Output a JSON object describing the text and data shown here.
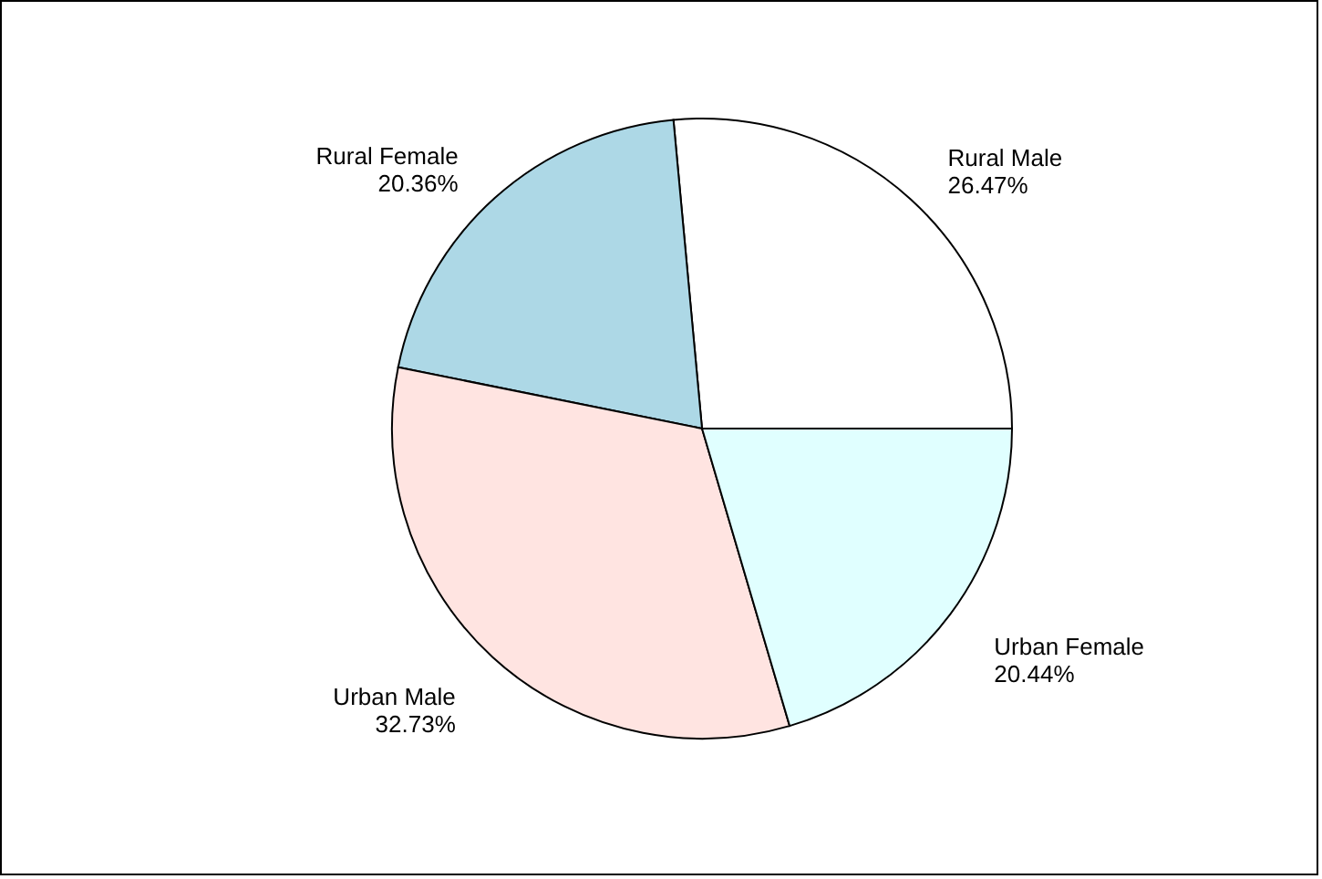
{
  "chart_data": {
    "type": "pie",
    "categories": [
      "Rural Male",
      "Rural Female",
      "Urban Male",
      "Urban Female"
    ],
    "values": [
      26.47,
      20.36,
      32.73,
      20.44
    ],
    "value_labels": [
      "26.47%",
      "20.36%",
      "32.73%",
      "20.44%"
    ],
    "colors": [
      "#ffffff",
      "#add8e6",
      "#ffe4e1",
      "#e0ffff"
    ]
  }
}
